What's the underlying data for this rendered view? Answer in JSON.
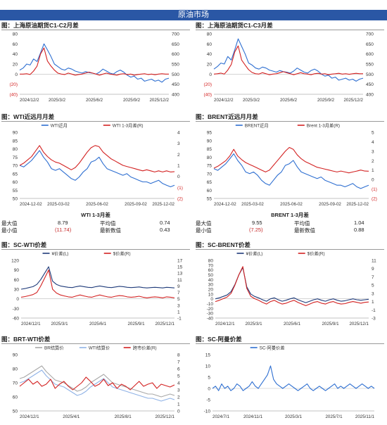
{
  "header": {
    "title": "原油市场"
  },
  "colors": {
    "banner": "#2a57a5",
    "blue": "#2e6fd1",
    "red": "#d32222",
    "dark": "#1f3b7a",
    "gray": "#a8a8a8",
    "lightblue": "#8fb2e6"
  },
  "panels": {
    "p1": {
      "title": "图：上海原油期货C1-C2月差"
    },
    "p2": {
      "title": "图：上海原油期货C1-C3月差"
    },
    "p3": {
      "title": "图：WTI近远月月差"
    },
    "p4": {
      "title": "图：BRENT近远月月差"
    },
    "p5": {
      "title": "图：SC-WTI价差"
    },
    "p6": {
      "title": "图：SC-BRENT价差"
    },
    "p7": {
      "title": "图：BRT-WTI价差"
    },
    "p8": {
      "title": "图：SC-阿曼价差"
    }
  },
  "stats": {
    "wti": {
      "title": "WTI 1-3月差",
      "max_label": "最大值",
      "max": "8.79",
      "avg_label": "平均值",
      "avg": "0.74",
      "min_label": "最小值",
      "min": "(11.74)",
      "latest_label": "最新数值",
      "latest": "0.43"
    },
    "brent": {
      "title": "BRENT 1-3月差",
      "max_label": "最大值",
      "max": "9.55",
      "avg_label": "平均值",
      "avg": "1.04",
      "min_label": "最小值",
      "min": "(7.25)",
      "latest_label": "最新数值",
      "latest": "0.88"
    }
  },
  "chart_data": [
    {
      "id": "p1",
      "type": "line",
      "x_ticks": [
        "2024/12/2",
        "2025/3/2",
        "2025/6/2",
        "2025/9/2",
        "2025/12/2"
      ],
      "y_ticks": [
        "(40)",
        "(20)",
        "0",
        "20",
        "40",
        "60",
        "80"
      ],
      "ylim": [
        -40,
        80
      ],
      "y2_ticks": [
        "400",
        "450",
        "500",
        "550",
        "600",
        "650",
        "700"
      ],
      "y2lim": [
        400,
        700
      ],
      "series": [
        {
          "axis": "left",
          "color": "blue",
          "values": [
            8,
            12,
            20,
            18,
            30,
            25,
            42,
            60,
            48,
            35,
            20,
            15,
            10,
            8,
            12,
            10,
            6,
            4,
            2,
            5,
            3,
            2,
            0,
            4,
            10,
            6,
            2,
            0,
            5,
            8,
            4,
            -2,
            -6,
            -4,
            -10,
            -8,
            -14,
            -12,
            -10,
            -14,
            -12,
            -16,
            -10,
            -8
          ]
        },
        {
          "axis": "right",
          "color": "red",
          "values": [
            500,
            500,
            502,
            498,
            515,
            540,
            600,
            630,
            565,
            540,
            520,
            505,
            500,
            498,
            505,
            500,
            495,
            498,
            500,
            505,
            510,
            505,
            500,
            495,
            500,
            505,
            500,
            498,
            495,
            500,
            502,
            498,
            500,
            495,
            498,
            500,
            502,
            498,
            500,
            497,
            500,
            502,
            500,
            500
          ]
        }
      ]
    },
    {
      "id": "p2",
      "type": "line",
      "x_ticks": [
        "2024/12/2",
        "2025/3/2",
        "2025/6/2",
        "2025/9/2",
        "2025/12/2"
      ],
      "y_ticks": [
        "(40)",
        "(20)",
        "0",
        "20",
        "40",
        "60",
        "80"
      ],
      "ylim": [
        -40,
        80
      ],
      "y2_ticks": [
        "400",
        "450",
        "500",
        "550",
        "600",
        "650",
        "700"
      ],
      "y2lim": [
        400,
        700
      ],
      "series": [
        {
          "axis": "left",
          "color": "blue",
          "values": [
            10,
            15,
            22,
            20,
            35,
            28,
            48,
            70,
            55,
            40,
            22,
            18,
            12,
            10,
            14,
            12,
            8,
            6,
            4,
            7,
            5,
            4,
            2,
            6,
            12,
            8,
            4,
            2,
            7,
            10,
            6,
            0,
            -4,
            -2,
            -8,
            -6,
            -12,
            -10,
            -8,
            -12,
            -10,
            -14,
            -10,
            -8
          ]
        },
        {
          "axis": "right",
          "color": "red",
          "values": [
            500,
            502,
            505,
            500,
            520,
            548,
            610,
            640,
            570,
            545,
            522,
            508,
            502,
            500,
            507,
            502,
            497,
            500,
            502,
            507,
            512,
            507,
            502,
            497,
            502,
            507,
            502,
            500,
            497,
            502,
            504,
            500,
            502,
            497,
            500,
            502,
            504,
            500,
            502,
            499,
            502,
            504,
            502,
            502
          ]
        }
      ]
    },
    {
      "id": "p3",
      "type": "line",
      "x_ticks": [
        "2024-12-02",
        "2025-03-02",
        "2025-06-02",
        "2025-09-02",
        "2025-12-02"
      ],
      "y_ticks": [
        "50",
        "55",
        "60",
        "65",
        "70",
        "75",
        "80",
        "85",
        "90"
      ],
      "ylim": [
        50,
        90
      ],
      "y2_ticks": [
        "(2)",
        "(1)",
        "0",
        "1",
        "2",
        "3",
        "4"
      ],
      "y2lim": [
        -2,
        4
      ],
      "legend": [
        "WTI近月",
        "WTI 1-3月差(R)"
      ],
      "series": [
        {
          "axis": "left",
          "name": "WTI近月",
          "color": "blue",
          "values": [
            70,
            69,
            71,
            73,
            76,
            79,
            75,
            72,
            68,
            67,
            68,
            66,
            64,
            62,
            61,
            63,
            66,
            68,
            72,
            73,
            75,
            71,
            68,
            67,
            66,
            65,
            64,
            65,
            63,
            62,
            61,
            60,
            60,
            59,
            60,
            61,
            59,
            58,
            57,
            58
          ]
        },
        {
          "axis": "right",
          "name": "WTI 1-3月差(R)",
          "color": "red",
          "values": [
            1.0,
            1.2,
            1.5,
            1.8,
            2.3,
            2.8,
            2.2,
            1.8,
            1.5,
            1.3,
            1.2,
            1.0,
            0.8,
            0.6,
            0.8,
            1.2,
            1.7,
            2.2,
            2.6,
            2.8,
            2.7,
            2.2,
            1.9,
            1.6,
            1.4,
            1.2,
            1.0,
            0.9,
            0.8,
            0.7,
            0.6,
            0.5,
            0.6,
            0.5,
            0.4,
            0.5,
            0.4,
            0.5,
            0.4,
            0.43
          ]
        }
      ]
    },
    {
      "id": "p4",
      "type": "line",
      "x_ticks": [
        "2024-12-02",
        "2025-03-02",
        "2025-06-02",
        "2025-09-02",
        "2025-12-02"
      ],
      "y_ticks": [
        "55",
        "60",
        "65",
        "70",
        "75",
        "80",
        "85",
        "90",
        "95"
      ],
      "ylim": [
        55,
        95
      ],
      "y2_ticks": [
        "(2)",
        "(1)",
        "0",
        "1",
        "2",
        "3",
        "4",
        "5"
      ],
      "y2lim": [
        -2,
        5
      ],
      "legend": [
        "BRENT近月",
        "Brent 1-3月差(R)"
      ],
      "series": [
        {
          "axis": "left",
          "name": "BRENT近月",
          "color": "blue",
          "values": [
            73,
            72,
            74,
            76,
            79,
            82,
            78,
            75,
            71,
            70,
            71,
            69,
            66,
            64,
            63,
            66,
            69,
            71,
            75,
            76,
            78,
            74,
            71,
            70,
            69,
            68,
            67,
            68,
            66,
            65,
            64,
            63,
            63,
            62,
            63,
            64,
            62,
            61,
            62,
            63
          ]
        },
        {
          "axis": "right",
          "name": "Brent 1-3月差(R)",
          "color": "red",
          "values": [
            1.2,
            1.4,
            1.7,
            2.0,
            2.5,
            3.2,
            2.5,
            2.1,
            1.8,
            1.6,
            1.4,
            1.2,
            1.0,
            0.8,
            1.0,
            1.5,
            2.0,
            2.5,
            3.0,
            3.4,
            3.2,
            2.6,
            2.2,
            1.9,
            1.7,
            1.5,
            1.3,
            1.2,
            1.1,
            1.0,
            0.9,
            0.8,
            0.9,
            0.8,
            0.7,
            0.8,
            0.9,
            1.0,
            0.9,
            0.88
          ]
        }
      ]
    },
    {
      "id": "p5",
      "type": "line",
      "x_ticks": [
        "2024/12/1",
        "2025/3/1",
        "2025/6/1",
        "2025/9/1",
        "2025/12/1"
      ],
      "y_ticks": [
        "-60",
        "-30",
        "0",
        "30",
        "60",
        "90",
        "120"
      ],
      "ylim": [
        -60,
        120
      ],
      "y2_ticks": [
        "-1",
        "1",
        "3",
        "5",
        "7",
        "9",
        "11",
        "13",
        "15",
        "17"
      ],
      "y2lim": [
        -1,
        17
      ],
      "legend": [
        "¥价差(L)",
        "$价差(R)"
      ],
      "series": [
        {
          "axis": "left",
          "name": "¥价差(L)",
          "color": "dark",
          "values": [
            30,
            32,
            35,
            38,
            45,
            60,
            80,
            100,
            55,
            45,
            40,
            38,
            36,
            35,
            38,
            40,
            38,
            36,
            35,
            38,
            40,
            38,
            36,
            35,
            37,
            39,
            38,
            36,
            35,
            36,
            37,
            35,
            34,
            35,
            36,
            35,
            34,
            36,
            35,
            34
          ]
        },
        {
          "axis": "right",
          "name": "$价差(R)",
          "color": "red",
          "values": [
            5.5,
            5.7,
            6.0,
            6.3,
            7.0,
            9.0,
            11.5,
            14.0,
            8.0,
            6.8,
            6.2,
            5.9,
            5.6,
            5.5,
            5.9,
            6.2,
            5.9,
            5.6,
            5.5,
            5.9,
            6.2,
            5.9,
            5.6,
            5.5,
            5.8,
            6.0,
            5.9,
            5.6,
            5.5,
            5.6,
            5.8,
            5.5,
            5.3,
            5.5,
            5.6,
            5.5,
            5.3,
            5.6,
            5.5,
            5.3
          ]
        }
      ]
    },
    {
      "id": "p6",
      "type": "line",
      "x_ticks": [
        "2024/12/1",
        "2025/3/1",
        "2025/6/1",
        "2025/9/1",
        "2025/12/1"
      ],
      "y_ticks": [
        "-40",
        "-30",
        "-20",
        "-10",
        "0",
        "10",
        "20",
        "30",
        "40",
        "50",
        "60",
        "70",
        "80"
      ],
      "ylim": [
        -40,
        80
      ],
      "y2_ticks": [
        "-3",
        "-1",
        "1",
        "3",
        "5",
        "7",
        "9",
        "11"
      ],
      "y2lim": [
        -3,
        11
      ],
      "legend": [
        "¥价差(L)",
        "$价差(R)"
      ],
      "series": [
        {
          "axis": "left",
          "name": "¥价差(L)",
          "color": "dark",
          "values": [
            0,
            2,
            5,
            8,
            15,
            30,
            50,
            65,
            25,
            10,
            5,
            2,
            -2,
            -5,
            0,
            2,
            -2,
            -5,
            -3,
            0,
            2,
            -2,
            -5,
            -8,
            -5,
            -2,
            0,
            -3,
            -5,
            -2,
            0,
            -3,
            -5,
            -4,
            -2,
            0,
            -2,
            -3,
            -2,
            -1
          ]
        },
        {
          "axis": "right",
          "name": "$价差(R)",
          "color": "red",
          "values": [
            1.0,
            1.3,
            1.7,
            2.1,
            3.0,
            5.0,
            7.5,
            9.5,
            4.2,
            2.3,
            1.7,
            1.3,
            0.8,
            0.4,
            1.0,
            1.3,
            0.8,
            0.4,
            0.6,
            1.0,
            1.3,
            0.8,
            0.4,
            0.0,
            0.4,
            0.8,
            1.0,
            0.6,
            0.4,
            0.8,
            1.0,
            0.6,
            0.4,
            0.5,
            0.8,
            1.0,
            0.8,
            0.6,
            0.8,
            0.9
          ]
        }
      ]
    },
    {
      "id": "p7",
      "type": "line",
      "x_ticks": [
        "2024/12/1",
        "2025/4/1",
        "2025/8/1",
        "2025/12/1"
      ],
      "y_ticks": [
        "50",
        "60",
        "70",
        "80",
        "90"
      ],
      "ylim": [
        50,
        90
      ],
      "y2_ticks": [
        "0",
        "1",
        "2",
        "3",
        "4",
        "5",
        "6",
        "7",
        "8"
      ],
      "y2lim": [
        0,
        8
      ],
      "legend": [
        "BR结算价",
        "WTI结算价",
        "跨市价差(R)"
      ],
      "series": [
        {
          "axis": "left",
          "name": "BR结算价",
          "color": "gray",
          "values": [
            73,
            74,
            76,
            78,
            80,
            82,
            78,
            75,
            72,
            71,
            70,
            68,
            66,
            64,
            65,
            67,
            70,
            72,
            74,
            76,
            73,
            70,
            69,
            68,
            67,
            66,
            65,
            64,
            63,
            62,
            62,
            61,
            60,
            61,
            62,
            61
          ]
        },
        {
          "axis": "left",
          "name": "WTI结算价",
          "color": "lightblue",
          "values": [
            70,
            71,
            73,
            75,
            77,
            79,
            75,
            72,
            69,
            68,
            67,
            65,
            63,
            61,
            62,
            64,
            67,
            69,
            71,
            73,
            70,
            67,
            66,
            65,
            64,
            63,
            62,
            61,
            60,
            59,
            59,
            58,
            57,
            58,
            59,
            58
          ]
        },
        {
          "axis": "right",
          "name": "跨市价差(R)",
          "color": "red",
          "values": [
            3.5,
            4.0,
            4.5,
            3.8,
            4.2,
            3.5,
            3.8,
            4.5,
            3.2,
            3.8,
            4.2,
            3.5,
            3.0,
            3.5,
            4.0,
            4.8,
            4.2,
            3.5,
            3.8,
            4.5,
            3.6,
            4.0,
            3.2,
            3.8,
            3.5,
            3.0,
            3.6,
            4.2,
            3.5,
            3.8,
            4.0,
            3.2,
            3.8,
            3.6,
            3.4,
            3.7
          ]
        }
      ]
    },
    {
      "id": "p8",
      "type": "line",
      "x_ticks": [
        "2024/7/1",
        "2024/11/1",
        "2025/3/1",
        "2025/7/1",
        "2025/11/1"
      ],
      "y_ticks": [
        "-10",
        "-5",
        "0",
        "5",
        "10",
        "15"
      ],
      "ylim": [
        -10,
        15
      ],
      "legend": [
        "SC-阿曼价差"
      ],
      "series": [
        {
          "axis": "left",
          "name": "SC-阿曼价差",
          "color": "blue",
          "values": [
            0,
            1,
            -1,
            2,
            0,
            1,
            -1,
            0,
            2,
            1,
            -1,
            0,
            1,
            3,
            1,
            0,
            2,
            4,
            6,
            10,
            4,
            2,
            1,
            0,
            1,
            2,
            1,
            0,
            -1,
            0,
            1,
            2,
            0,
            -1,
            0,
            1,
            0,
            -1,
            0,
            1,
            2,
            0,
            1,
            0,
            1,
            2,
            1,
            0,
            1,
            2,
            1,
            0,
            1,
            0
          ]
        }
      ]
    }
  ]
}
